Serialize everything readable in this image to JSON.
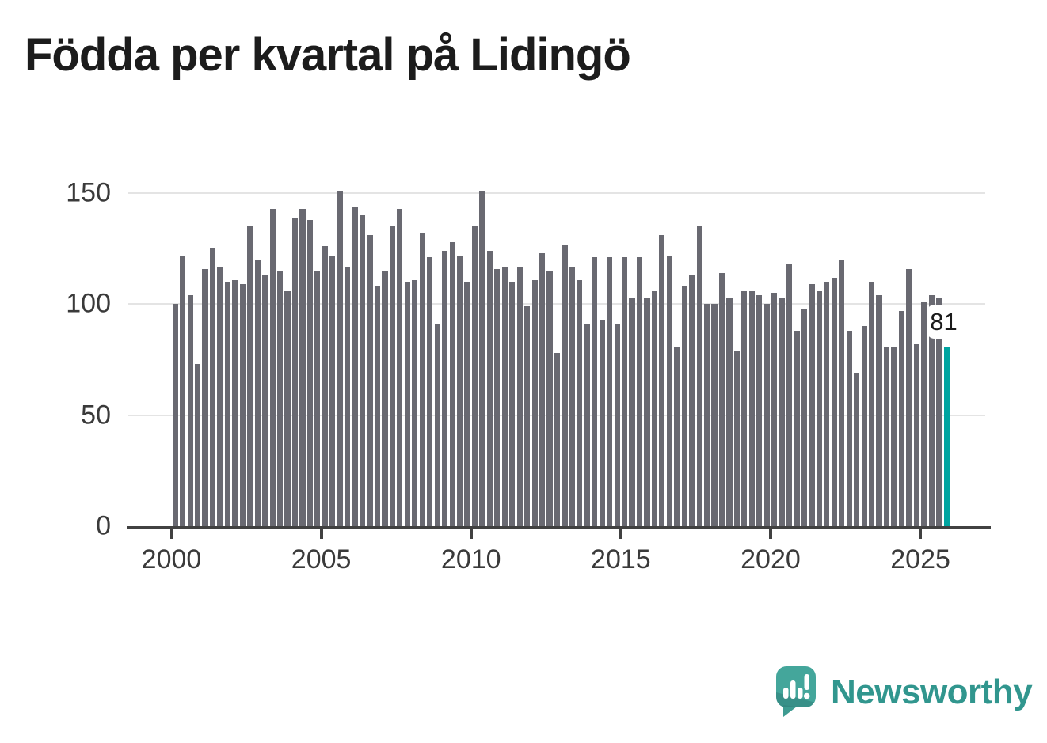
{
  "title": "Födda per kvartal på Lidingö",
  "chart_data": {
    "type": "bar",
    "title": "Födda per kvartal på Lidingö",
    "xlabel": "",
    "ylabel": "",
    "x_start_year": 2000,
    "quarters": [
      "2000Q1",
      "2000Q2",
      "2000Q3",
      "2000Q4",
      "2001Q1",
      "2001Q2",
      "2001Q3",
      "2001Q4",
      "2002Q1",
      "2002Q2",
      "2002Q3",
      "2002Q4",
      "2003Q1",
      "2003Q2",
      "2003Q3",
      "2003Q4",
      "2004Q1",
      "2004Q2",
      "2004Q3",
      "2004Q4",
      "2005Q1",
      "2005Q2",
      "2005Q3",
      "2005Q4",
      "2006Q1",
      "2006Q2",
      "2006Q3",
      "2006Q4",
      "2007Q1",
      "2007Q2",
      "2007Q3",
      "2007Q4",
      "2008Q1",
      "2008Q2",
      "2008Q3",
      "2008Q4",
      "2009Q1",
      "2009Q2",
      "2009Q3",
      "2009Q4",
      "2010Q1",
      "2010Q2",
      "2010Q3",
      "2010Q4",
      "2011Q1",
      "2011Q2",
      "2011Q3",
      "2011Q4",
      "2012Q1",
      "2012Q2",
      "2012Q3",
      "2012Q4",
      "2013Q1",
      "2013Q2",
      "2013Q3",
      "2013Q4",
      "2014Q1",
      "2014Q2",
      "2014Q3",
      "2014Q4",
      "2015Q1",
      "2015Q2",
      "2015Q3",
      "2015Q4",
      "2016Q1",
      "2016Q2",
      "2016Q3",
      "2016Q4",
      "2017Q1",
      "2017Q2",
      "2017Q3",
      "2017Q4",
      "2018Q1",
      "2018Q2",
      "2018Q3",
      "2018Q4",
      "2019Q1",
      "2019Q2",
      "2019Q3",
      "2019Q4",
      "2020Q1",
      "2020Q2",
      "2020Q3",
      "2020Q4",
      "2021Q1",
      "2021Q2",
      "2021Q3",
      "2021Q4",
      "2022Q1",
      "2022Q2",
      "2022Q3",
      "2022Q4",
      "2023Q1",
      "2023Q2",
      "2023Q3",
      "2023Q4",
      "2024Q1",
      "2024Q2",
      "2024Q3",
      "2024Q4",
      "2025Q1",
      "2025Q2",
      "2025Q3",
      "2025Q4"
    ],
    "values": [
      100,
      122,
      104,
      73,
      116,
      125,
      117,
      110,
      111,
      109,
      135,
      120,
      113,
      143,
      115,
      106,
      139,
      143,
      138,
      115,
      126,
      122,
      151,
      117,
      144,
      140,
      131,
      108,
      115,
      135,
      143,
      110,
      111,
      132,
      121,
      91,
      124,
      128,
      122,
      110,
      135,
      151,
      124,
      116,
      117,
      110,
      117,
      99,
      111,
      123,
      115,
      78,
      127,
      117,
      111,
      91,
      121,
      93,
      121,
      91,
      121,
      103,
      121,
      103,
      106,
      131,
      122,
      81,
      108,
      113,
      135,
      100,
      100,
      114,
      103,
      79,
      106,
      106,
      104,
      100,
      105,
      103,
      118,
      88,
      98,
      109,
      106,
      110,
      112,
      120,
      88,
      69,
      90,
      110,
      104,
      81,
      81,
      97,
      116,
      82,
      101,
      104,
      103,
      81
    ],
    "last_label": "81",
    "yticks": [
      0,
      50,
      100,
      150
    ],
    "xticks": [
      2000,
      2005,
      2010,
      2015,
      2020,
      2025
    ],
    "ylim": [
      0,
      155
    ],
    "grid": "horizontal",
    "legend": "none",
    "colors": {
      "bar": "#696971",
      "highlight": "#00a4a0",
      "gridline": "#e4e4e4",
      "axis": "#414141",
      "tick_label": "#3a3a3a",
      "title": "#1c1c1c"
    }
  },
  "logo": {
    "text": "Newsworthy",
    "text_color": "#31968e",
    "bubble_color": "#44a69b"
  }
}
